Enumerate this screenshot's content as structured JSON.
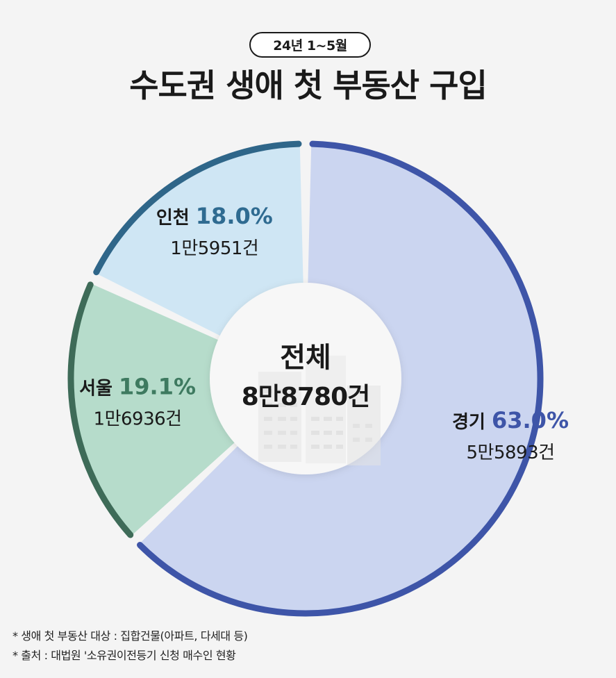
{
  "header": {
    "period": "24년 1~5월",
    "title": "수도권 생애 첫 부동산 구입"
  },
  "chart_data": {
    "type": "pie",
    "title": "수도권 생애 첫 부동산 구입",
    "subtitle": "24년 1~5월",
    "center": {
      "label": "전체",
      "value": "8만8780건"
    },
    "slices": [
      {
        "name": "경기",
        "percent": 63.0,
        "percent_label": "63.0%",
        "count_label": "5만5893건",
        "count": 55893,
        "fill": "#cbd5f0",
        "ring": "#3e55a8",
        "label_color": "#3e55a8"
      },
      {
        "name": "서울",
        "percent": 19.1,
        "percent_label": "19.1%",
        "count_label": "1만6936건",
        "count": 16936,
        "fill": "#b6dccb",
        "ring": "#3e6b58",
        "label_color": "#3e7a60"
      },
      {
        "name": "인천",
        "percent": 18.0,
        "percent_label": "18.0%",
        "count_label": "1만5951건",
        "count": 15951,
        "fill": "#cfe6f4",
        "ring": "#2f6689",
        "label_color": "#2f6b91"
      }
    ]
  },
  "footnotes": [
    "* 생애 첫 부동산 대상 : 집합건물(아파트, 다세대 등)",
    "* 출처 : 대법원 '소유권이전등기 신청 매수인 현황"
  ]
}
